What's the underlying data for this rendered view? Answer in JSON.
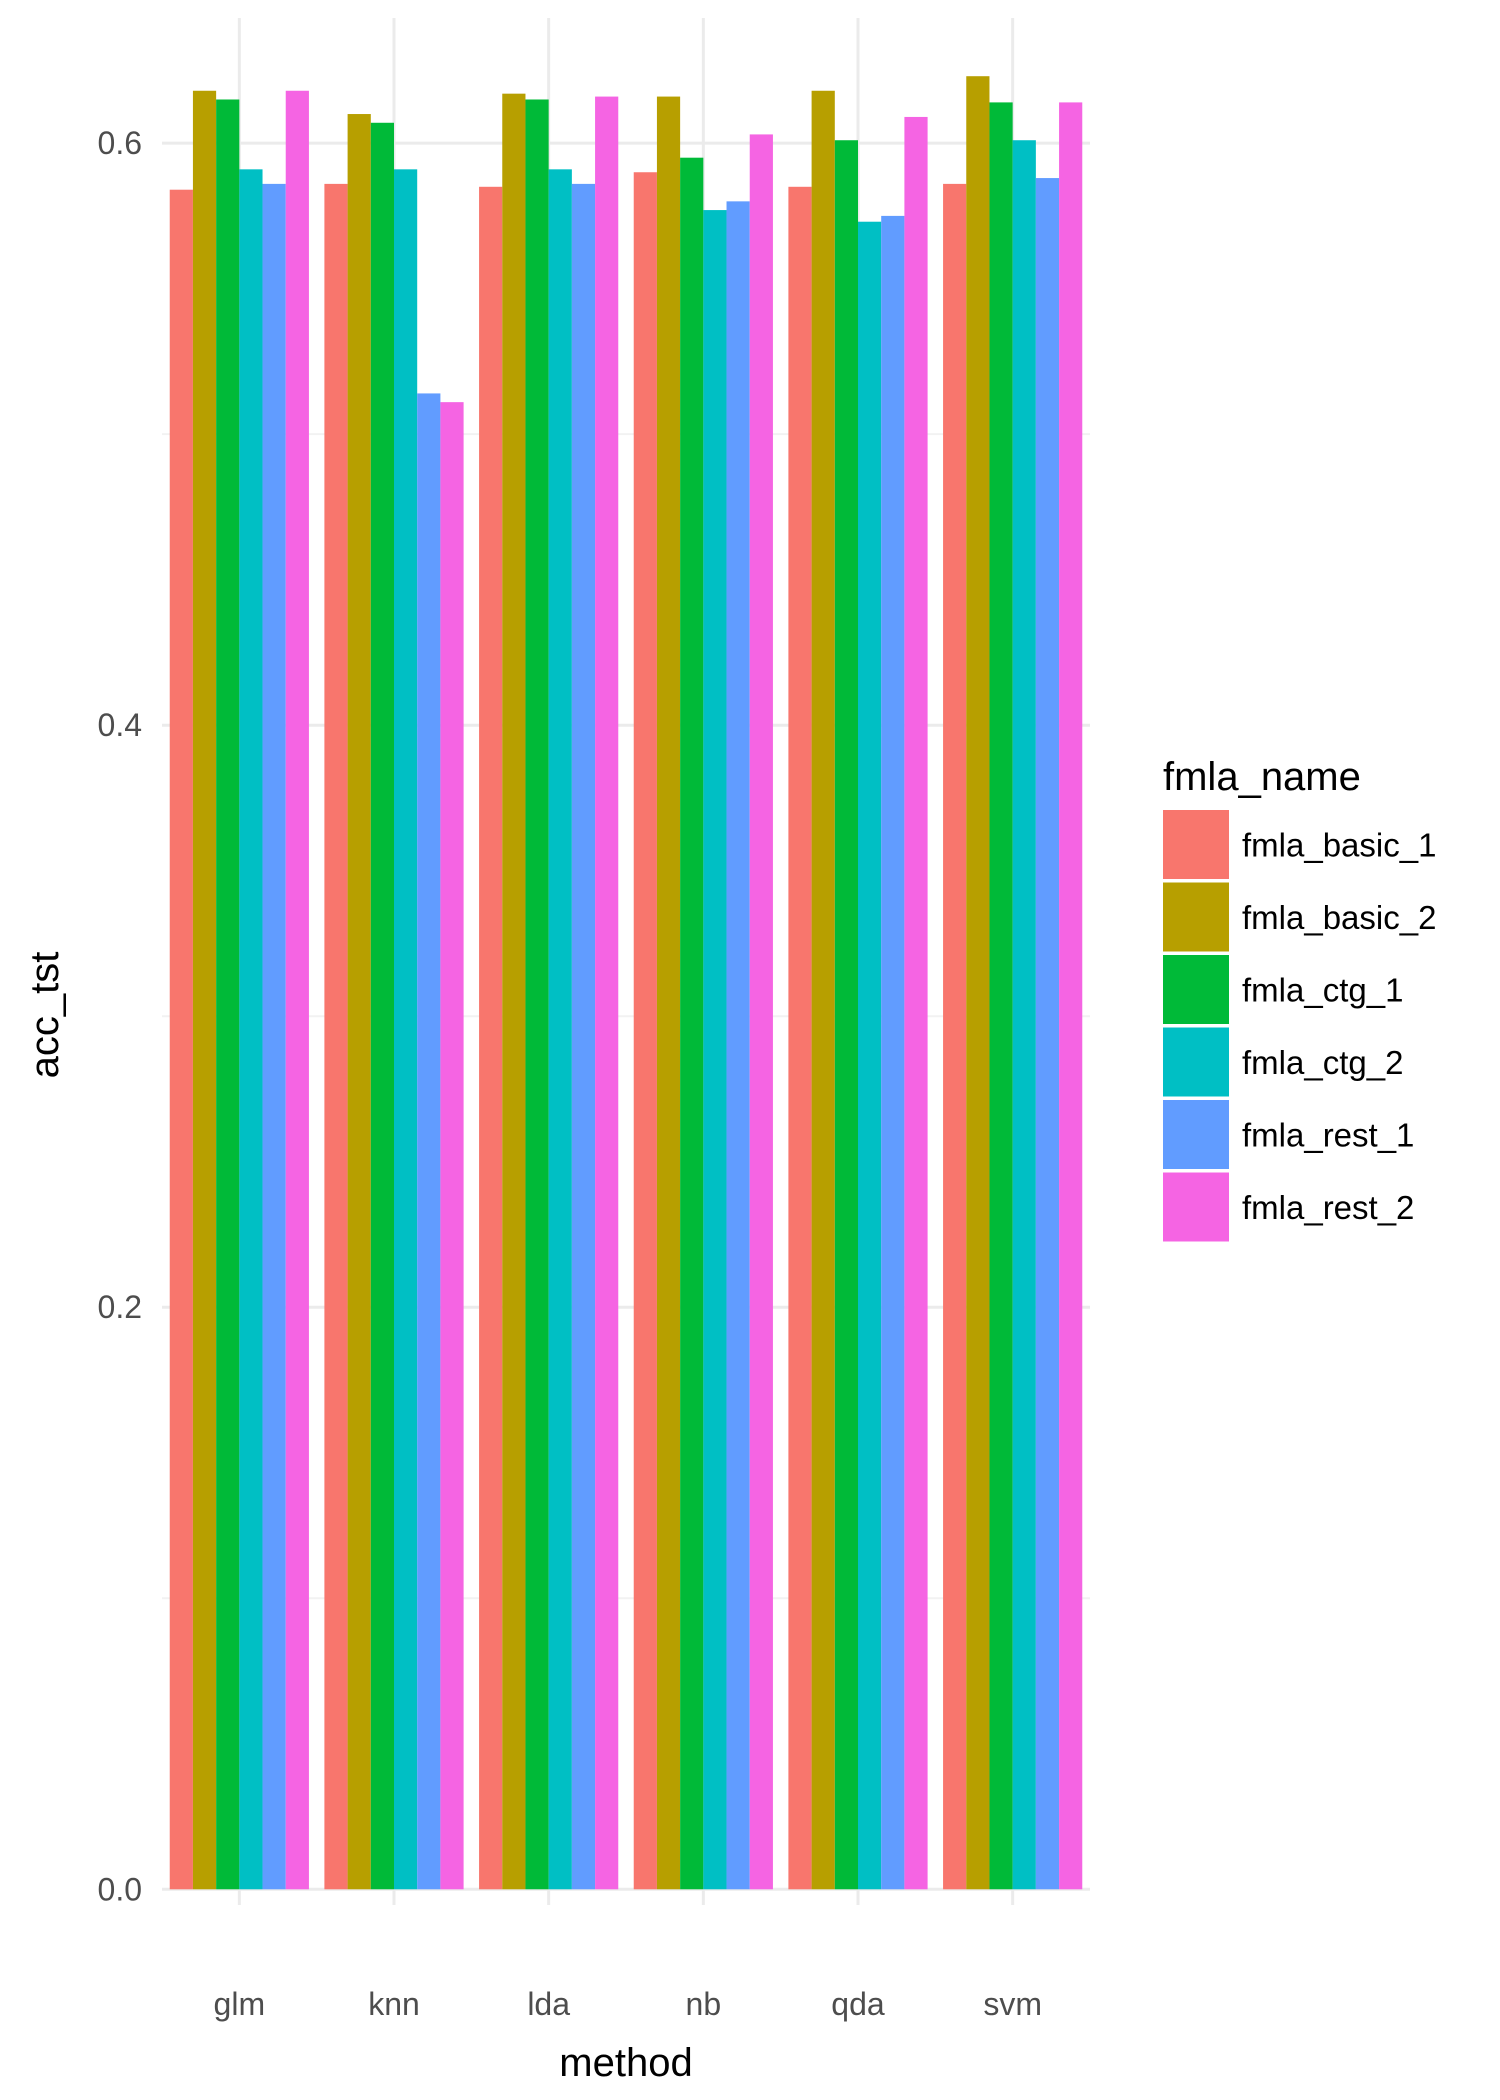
{
  "chart_data": {
    "type": "bar",
    "xlabel": "method",
    "ylabel": "acc_tst",
    "categories": [
      "glm",
      "knn",
      "lda",
      "nb",
      "qda",
      "svm"
    ],
    "ylim": [
      -0.0054,
      0.643
    ],
    "yticks": [
      0.0,
      0.2,
      0.4,
      0.6
    ],
    "ytick_labels": [
      "0.0",
      "0.2",
      "0.4",
      "0.6"
    ],
    "grid": true,
    "legend": {
      "title": "fmla_name",
      "placement": "right"
    },
    "series": [
      {
        "name": "fmla_basic_1",
        "color": "#F8766D",
        "values": [
          0.584,
          0.586,
          0.585,
          0.59,
          0.585,
          0.586
        ]
      },
      {
        "name": "fmla_basic_2",
        "color": "#B79F00",
        "values": [
          0.618,
          0.61,
          0.617,
          0.616,
          0.618,
          0.623
        ]
      },
      {
        "name": "fmla_ctg_1",
        "color": "#00BA38",
        "values": [
          0.615,
          0.607,
          0.615,
          0.595,
          0.601,
          0.614
        ]
      },
      {
        "name": "fmla_ctg_2",
        "color": "#00BFC4",
        "values": [
          0.591,
          0.591,
          0.591,
          0.577,
          0.573,
          0.601
        ]
      },
      {
        "name": "fmla_rest_1",
        "color": "#619CFF",
        "values": [
          0.586,
          0.514,
          0.586,
          0.58,
          0.575,
          0.588
        ]
      },
      {
        "name": "fmla_rest_2",
        "color": "#F564E3",
        "values": [
          0.618,
          0.511,
          0.616,
          0.603,
          0.609,
          0.614
        ]
      }
    ]
  }
}
